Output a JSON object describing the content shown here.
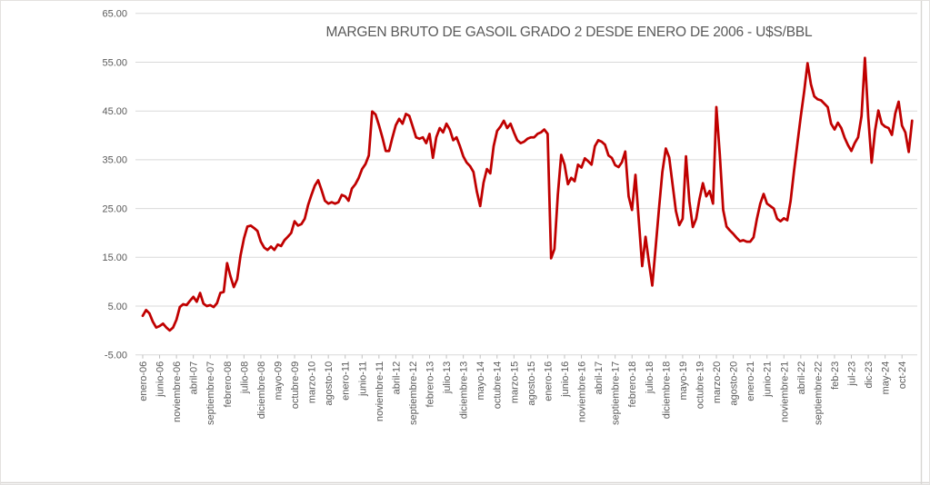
{
  "window": {
    "background": "#FFFFFF",
    "frame_color": "#d8d6d3"
  },
  "chart_data": {
    "type": "line",
    "title": "MARGEN BRUTO DE GASOIL GRADO 2 DESDE ENERO DE 2006 - U$S/BBL",
    "x_frequency": "monthly",
    "x_tick_step": 5,
    "x_tick_labels": [
      "enero-06",
      "junio-06",
      "noviembre-06",
      "abril-07",
      "septiembre-07",
      "febrero-08",
      "julio-08",
      "diciembre-08",
      "mayo-09",
      "octubre-09",
      "marzo-10",
      "agosto-10",
      "enero-11",
      "junio-11",
      "noviembre-11",
      "abril-12",
      "septiembre-12",
      "febrero-13",
      "julio-13",
      "diciembre-13",
      "mayo-14",
      "octubre-14",
      "marzo-15",
      "agosto-15",
      "enero-16",
      "junio-16",
      "noviembre-16",
      "abril-17",
      "septiembre-17",
      "febrero-18",
      "julio-18",
      "diciembre-18",
      "mayo-19",
      "octubre-19",
      "marzo-20",
      "agosto-20",
      "enero-21",
      "junio-21",
      "noviembre-21",
      "abril-22",
      "septiembre-22",
      "feb-23",
      "jul-23",
      "dic-23",
      "may-24",
      "oct-24"
    ],
    "y_tick_labels": [
      "65.00",
      "55.00",
      "45.00",
      "35.00",
      "25.00",
      "15.00",
      "5.00",
      "-5.00"
    ],
    "ylim": [
      -5,
      65
    ],
    "grid": "horizontal",
    "grid_color": "#D9D9D9",
    "tick_color": "#BFBFBF",
    "text_color": "#595959",
    "line_color": "#C00000",
    "values": [
      3.0,
      4.2,
      3.5,
      1.8,
      0.6,
      0.9,
      1.4,
      0.6,
      0.0,
      0.6,
      2.2,
      4.8,
      5.4,
      5.2,
      6.1,
      6.9,
      5.9,
      7.7,
      5.5,
      5.0,
      5.2,
      4.8,
      5.6,
      7.7,
      7.9,
      13.8,
      11.1,
      8.9,
      10.5,
      15.4,
      18.9,
      21.3,
      21.5,
      21.0,
      20.4,
      18.2,
      17.0,
      16.5,
      17.2,
      16.5,
      17.6,
      17.3,
      18.5,
      19.2,
      20.0,
      22.4,
      21.5,
      21.8,
      22.9,
      25.7,
      27.8,
      29.7,
      30.8,
      28.8,
      26.6,
      26.0,
      26.3,
      26.0,
      26.3,
      27.8,
      27.5,
      26.6,
      29.1,
      30.0,
      31.3,
      33.1,
      34.1,
      35.9,
      44.9,
      44.3,
      42.1,
      39.6,
      36.8,
      36.8,
      39.6,
      42.1,
      43.4,
      42.4,
      44.4,
      44.0,
      41.8,
      39.6,
      39.3,
      39.6,
      38.4,
      40.3,
      35.4,
      39.6,
      41.5,
      40.6,
      42.4,
      41.2,
      39.0,
      39.6,
      37.8,
      35.7,
      34.4,
      33.7,
      32.5,
      28.5,
      25.5,
      30.3,
      33.1,
      32.2,
      37.8,
      40.9,
      41.8,
      43.0,
      41.5,
      42.4,
      40.6,
      39.0,
      38.4,
      38.7,
      39.3,
      39.6,
      39.6,
      40.3,
      40.6,
      41.2,
      40.3,
      14.8,
      16.7,
      27.8,
      36.0,
      34.0,
      30.0,
      31.3,
      30.6,
      34.0,
      33.4,
      35.3,
      34.7,
      34.0,
      37.8,
      39.0,
      38.7,
      38.1,
      35.9,
      35.4,
      33.9,
      33.5,
      34.5,
      36.7,
      27.5,
      24.7,
      31.9,
      22.5,
      13.2,
      19.2,
      14.0,
      9.2,
      17.0,
      25.0,
      32.5,
      37.3,
      35.5,
      30.0,
      24.5,
      21.6,
      22.9,
      35.7,
      26.5,
      21.2,
      22.9,
      27.0,
      30.2,
      27.5,
      28.6,
      26.0,
      45.8,
      36.0,
      24.7,
      21.3,
      20.5,
      19.8,
      19.0,
      18.3,
      18.5,
      18.2,
      18.2,
      19.1,
      22.9,
      26.0,
      28.0,
      26.0,
      25.5,
      25.0,
      22.9,
      22.4,
      23.0,
      22.6,
      26.6,
      32.7,
      38.3,
      43.8,
      49.0,
      54.8,
      50.5,
      48.0,
      47.4,
      47.2,
      46.5,
      45.8,
      42.4,
      41.2,
      42.6,
      41.5,
      39.5,
      38.0,
      36.8,
      38.4,
      39.6,
      44.0,
      55.9,
      43.7,
      34.4,
      40.9,
      45.1,
      42.4,
      41.8,
      41.5,
      40.1,
      44.5,
      46.9,
      42.0,
      40.6,
      36.6,
      43.0
    ]
  }
}
